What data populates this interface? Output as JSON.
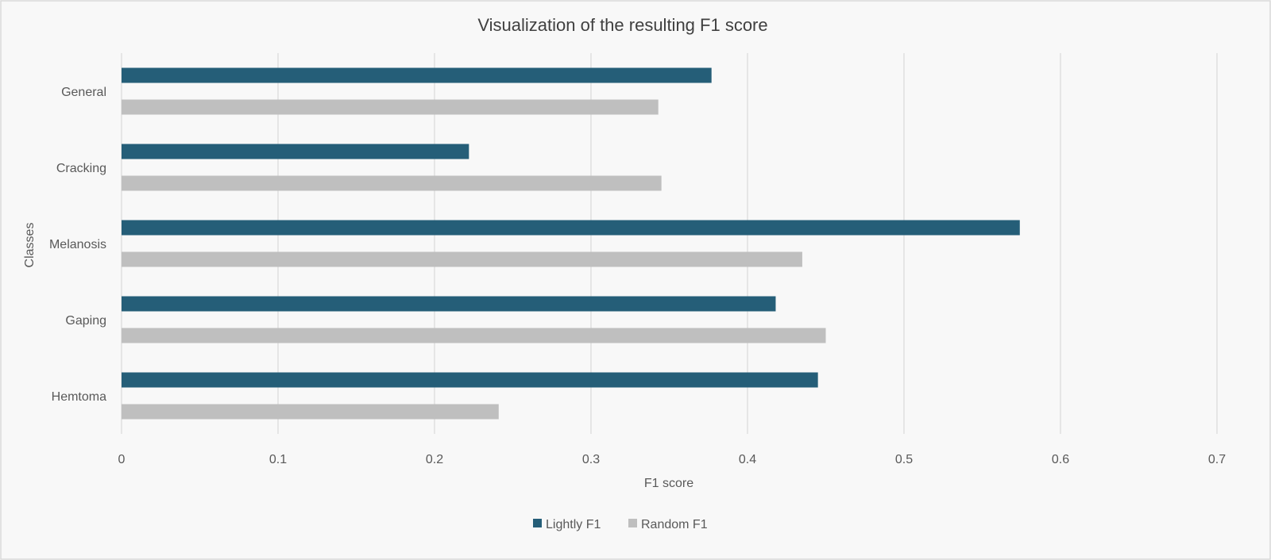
{
  "chart_data": {
    "type": "bar",
    "orientation": "horizontal",
    "title": "Visualization of the resulting F1 score",
    "xlabel": "F1 score",
    "ylabel": "Classes",
    "categories": [
      "General",
      "Cracking",
      "Melanosis",
      "Gaping",
      "Hemtoma"
    ],
    "series": [
      {
        "name": "Lightly F1",
        "color": "#255e78",
        "values": [
          0.377,
          0.222,
          0.574,
          0.418,
          0.445
        ]
      },
      {
        "name": "Random F1",
        "color": "#bfbfbf",
        "values": [
          0.343,
          0.345,
          0.435,
          0.45,
          0.241
        ]
      }
    ],
    "xlim": [
      0,
      0.7
    ],
    "xticks": [
      "0",
      "0.1",
      "0.2",
      "0.3",
      "0.4",
      "0.5",
      "0.6",
      "0.7"
    ],
    "grid": "vertical",
    "legend_position": "bottom",
    "background_color": "#f8f8f8",
    "border_color": "#d9d9d9",
    "gridline_color": "#d9d9d9"
  }
}
